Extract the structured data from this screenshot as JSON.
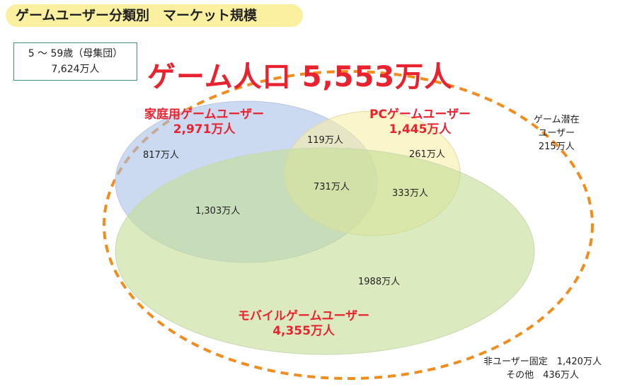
{
  "title": "ゲームユーザー分類別　マーケット規模",
  "population": {
    "label": "5 ～ 59歳（母集団）",
    "value": "7,624万人"
  },
  "game_population": "ゲーム人口 5,553万人",
  "groups": {
    "home": {
      "name": "家庭用ゲームユーザー",
      "total": "2,971万人"
    },
    "pc": {
      "name": "PCゲームユーザー",
      "total": "1,445万人"
    },
    "mobile": {
      "name": "モバイルゲームユーザー",
      "total": "4,355万人"
    }
  },
  "regions": {
    "home_only": "817万人",
    "home_pc": "119万人",
    "pc_only": "261万人",
    "all_three": "731万人",
    "pc_mobile": "333万人",
    "home_mobile": "1,303万人",
    "mobile_only": "1988万人"
  },
  "potential": {
    "line1": "ゲーム潜在",
    "line2": "ユーザー",
    "value": "215万人"
  },
  "non_users": {
    "line1": "非ユーザー固定　1,420万人",
    "line2": "その他　436万人"
  },
  "colors": {
    "home": "#a8bfe8",
    "pc": "#f9eeaa",
    "mobile": "#c5dd95",
    "dashed": "#f08d1e",
    "accent": "#e8232f"
  }
}
